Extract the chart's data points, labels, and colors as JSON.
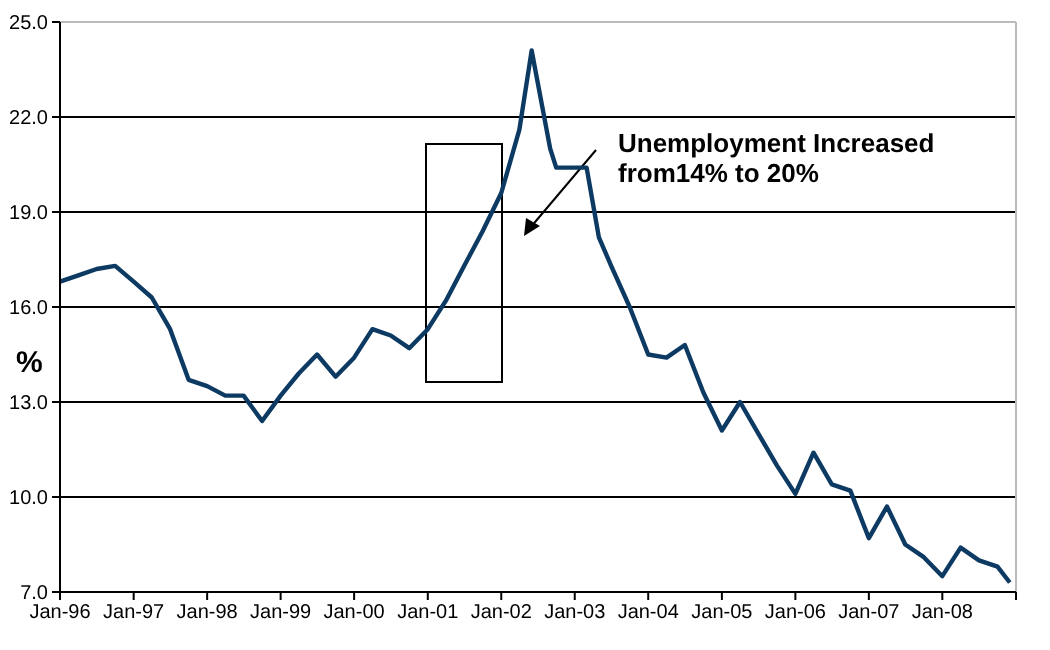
{
  "chart_data": {
    "type": "line",
    "ylabel": "%",
    "annotations": [
      "Unemployment Increased from14% to 20%"
    ],
    "x": [
      "1996-01",
      "1996-04",
      "1996-07",
      "1996-10",
      "1997-01",
      "1997-04",
      "1997-07",
      "1997-10",
      "1998-01",
      "1998-04",
      "1998-07",
      "1998-10",
      "1999-01",
      "1999-04",
      "1999-07",
      "1999-10",
      "2000-01",
      "2000-04",
      "2000-07",
      "2000-10",
      "2001-01",
      "2001-04",
      "2001-07",
      "2001-10",
      "2002-01",
      "2002-04",
      "2002-06",
      "2002-09",
      "2002-10",
      "2003-01",
      "2003-03",
      "2003-05",
      "2003-07",
      "2003-10",
      "2004-01",
      "2004-04",
      "2004-07",
      "2004-10",
      "2005-01",
      "2005-04",
      "2005-07",
      "2005-10",
      "2006-01",
      "2006-04",
      "2006-07",
      "2006-10",
      "2007-01",
      "2007-04",
      "2007-07",
      "2007-10",
      "2008-01",
      "2008-04",
      "2008-07",
      "2008-10",
      "2008-12"
    ],
    "series": [
      {
        "color": "#0d3a63",
        "values": [
          16.8,
          17.0,
          17.2,
          17.3,
          16.8,
          16.3,
          15.3,
          13.7,
          13.5,
          13.2,
          13.2,
          12.4,
          13.2,
          13.9,
          14.5,
          13.8,
          14.4,
          15.3,
          15.1,
          14.7,
          15.3,
          16.2,
          17.3,
          18.4,
          19.6,
          21.6,
          24.1,
          21.0,
          20.4,
          20.4,
          20.4,
          18.2,
          17.3,
          16.0,
          14.5,
          14.4,
          14.8,
          13.3,
          12.1,
          13.0,
          12.0,
          11.0,
          10.1,
          11.4,
          10.4,
          10.2,
          8.7,
          9.7,
          8.5,
          8.1,
          7.5,
          8.4,
          8.0,
          7.8,
          7.3
        ]
      }
    ],
    "xlim": [
      "1996-01",
      "2009-01"
    ],
    "xticks": [
      {
        "value": "1996-01",
        "label": "Jan-96"
      },
      {
        "value": "1997-01",
        "label": "Jan-97"
      },
      {
        "value": "1998-01",
        "label": "Jan-98"
      },
      {
        "value": "1999-01",
        "label": "Jan-99"
      },
      {
        "value": "2000-01",
        "label": "Jan-00"
      },
      {
        "value": "2001-01",
        "label": "Jan-01"
      },
      {
        "value": "2002-01",
        "label": "Jan-02"
      },
      {
        "value": "2003-01",
        "label": "Jan-03"
      },
      {
        "value": "2004-01",
        "label": "Jan-04"
      },
      {
        "value": "2005-01",
        "label": "Jan-05"
      },
      {
        "value": "2006-01",
        "label": "Jan-06"
      },
      {
        "value": "2007-01",
        "label": "Jan-07"
      },
      {
        "value": "2008-01",
        "label": "Jan-08"
      },
      {
        "value": "2009-01",
        "label": null
      }
    ],
    "ylim": [
      7,
      25
    ],
    "yticks": [
      {
        "value": 7,
        "label": "7.0"
      },
      {
        "value": 10,
        "label": "10.0"
      },
      {
        "value": 13,
        "label": "13.0"
      },
      {
        "value": 16,
        "label": "16.0"
      },
      {
        "value": 19,
        "label": "19.0"
      },
      {
        "value": 22,
        "label": "22.0"
      },
      {
        "value": 25,
        "label": "25.0"
      }
    ],
    "grid": "y",
    "marker": "none",
    "line_style": "solid"
  }
}
